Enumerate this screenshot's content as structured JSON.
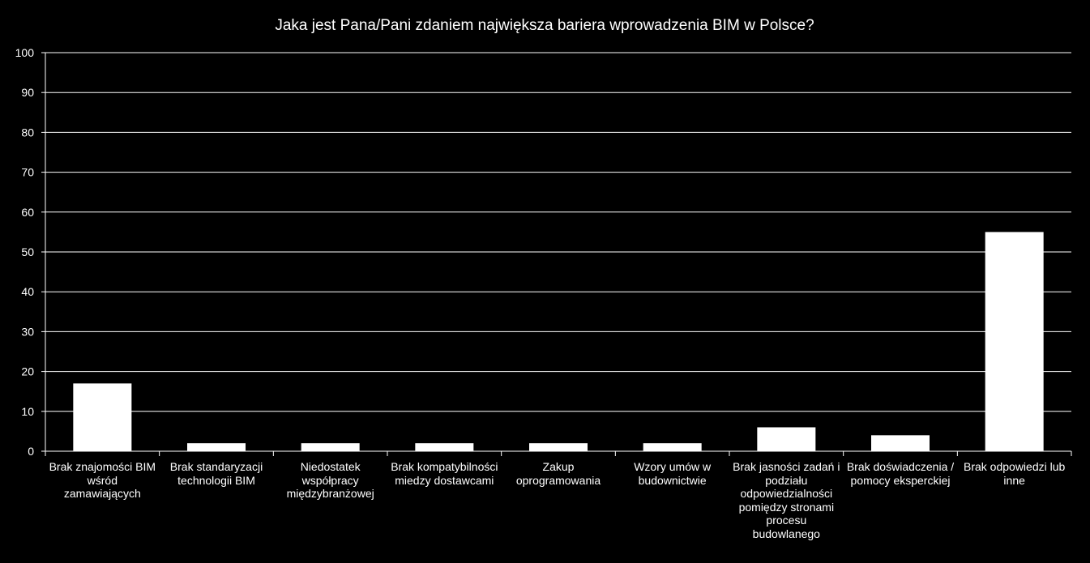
{
  "chart_data": {
    "type": "bar",
    "title": "Jaka jest Pana/Pani zdaniem największa bariera wprowadzenia BIM w Polsce?",
    "categories": [
      "Brak znajomości BIM wśród zamawiających",
      "Brak standaryzacji technologii BIM",
      "Niedostatek współpracy międzybranżowej",
      "Brak kompatybilności miedzy dostawcami",
      "Zakup oprogramowania",
      "Wzory umów w budownictwie",
      "Brak jasności zadań i podziału odpowiedzialności pomiędzy stronami procesu budowlanego",
      "Brak doświadczenia / pomocy eksperckiej",
      "Brak odpowiedzi lub inne"
    ],
    "values": [
      17,
      2,
      2,
      2,
      2,
      2,
      6,
      4,
      55
    ],
    "ylim": [
      0,
      100
    ],
    "yticks": [
      "0",
      "10",
      "20",
      "30",
      "40",
      "50",
      "60",
      "70",
      "80",
      "90",
      "100"
    ],
    "grid": true,
    "xlabel": "",
    "ylabel": "",
    "colors": {
      "background": "#000000",
      "bar": "#ffffff",
      "gridline": "#ffffff",
      "text": "#ffffff"
    }
  }
}
